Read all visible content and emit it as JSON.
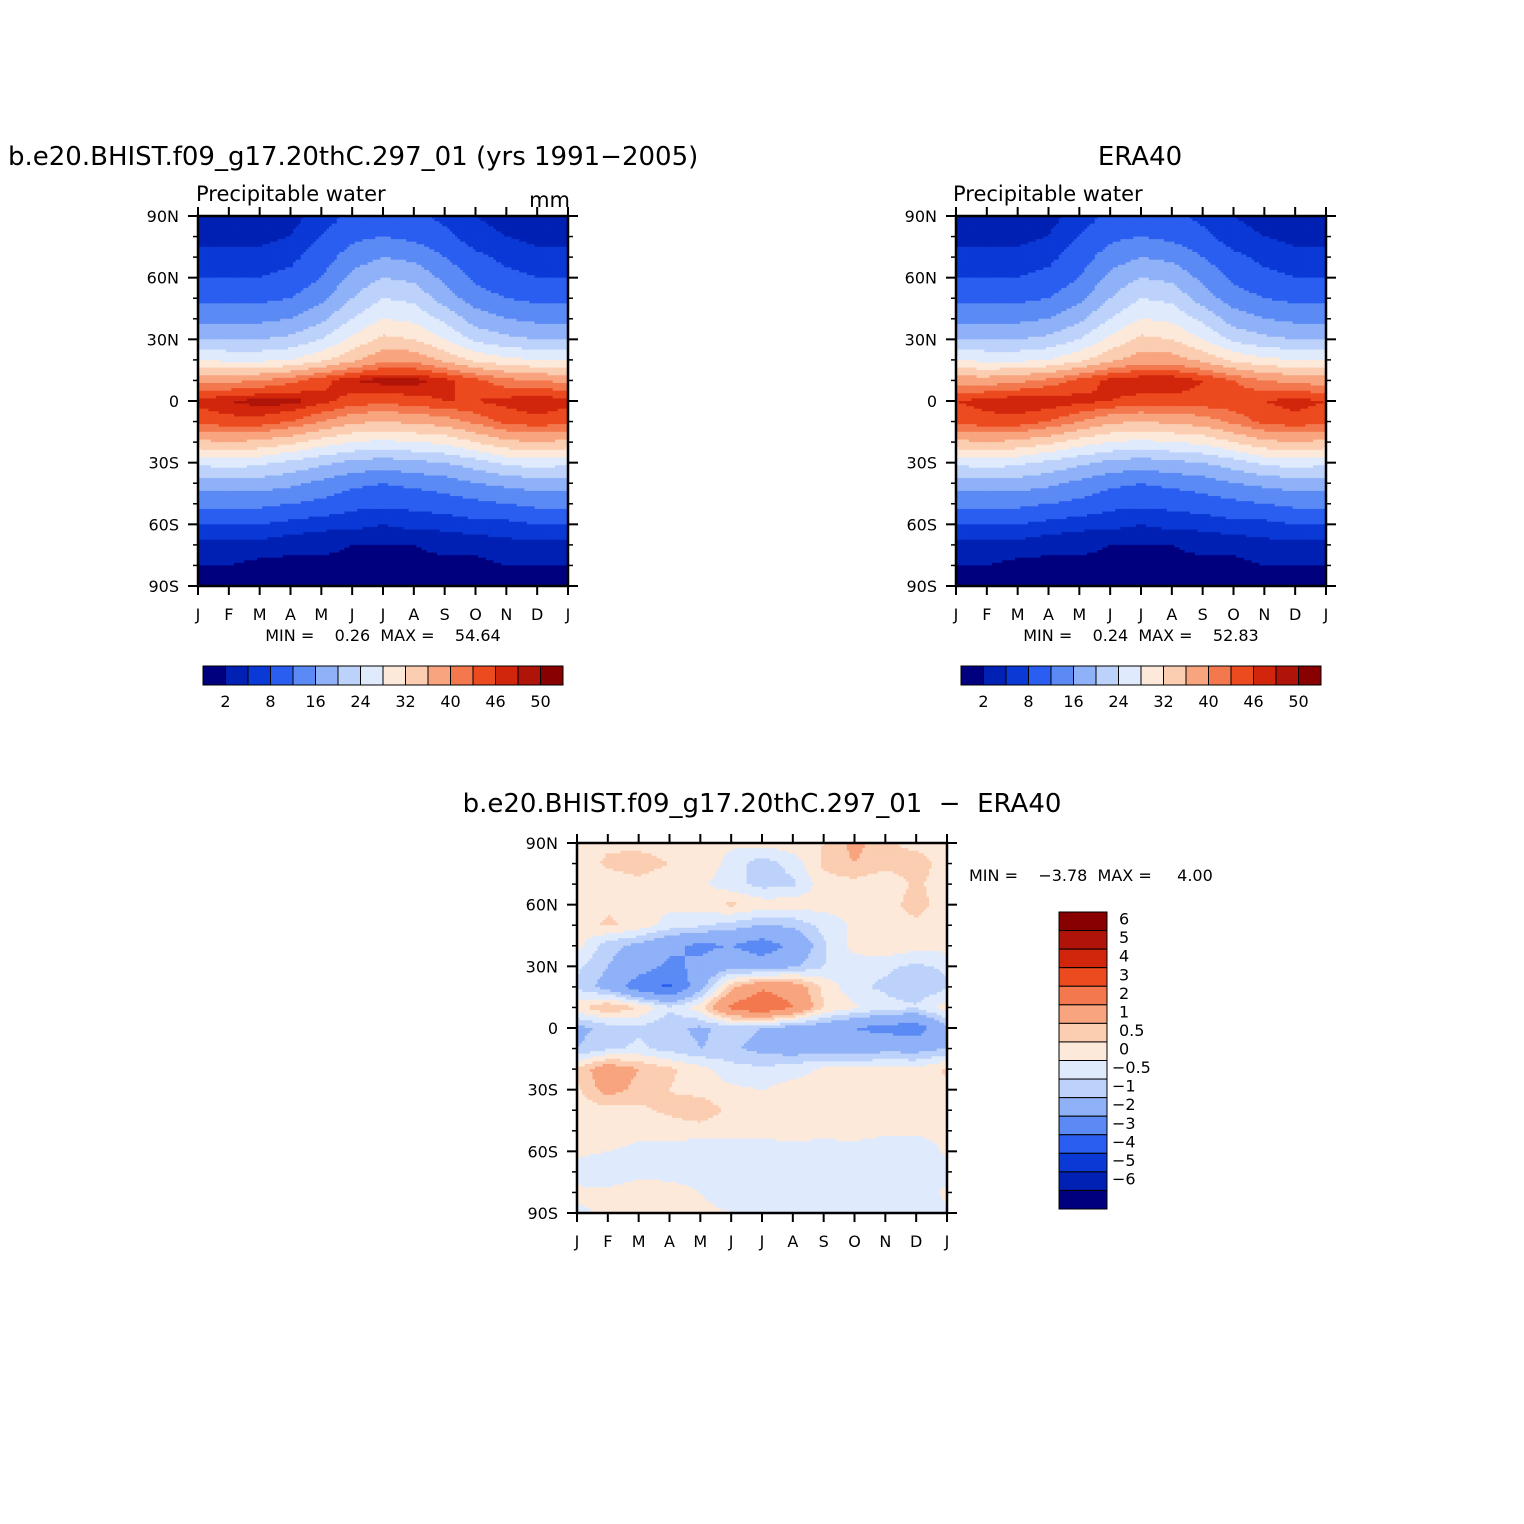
{
  "chart_data": [
    {
      "type": "heatmap",
      "title": "b.e20.BHIST.f09_g17.20thC.297_01 (yrs 1991−2005)",
      "subtitle": "Precipitable water",
      "units": "mm",
      "x_ticks": [
        "J",
        "F",
        "M",
        "A",
        "M",
        "J",
        "J",
        "A",
        "S",
        "O",
        "N",
        "D",
        "J"
      ],
      "y_ticks": [
        "90N",
        "60N",
        "30N",
        "0",
        "30S",
        "60S",
        "90S"
      ],
      "ylim": [
        -90,
        90
      ],
      "stats_text": "MIN =    0.26  MAX =    54.64",
      "min": 0.26,
      "max": 54.64,
      "colorbar_labels": [
        "2",
        "8",
        "16",
        "24",
        "32",
        "40",
        "46",
        "50"
      ],
      "colorbar_colors": [
        "#00007f",
        "#0021b4",
        "#0b39d6",
        "#2a5ef0",
        "#5b8af5",
        "#8fb1f8",
        "#bdd2fb",
        "#dfeafd",
        "#fde9da",
        "#fbcdb1",
        "#f8a47e",
        "#f4784e",
        "#ec4a1f",
        "#d2260c",
        "#b01408",
        "#880000"
      ],
      "lat_grid": [
        90,
        80,
        70,
        60,
        50,
        40,
        30,
        20,
        10,
        0,
        -10,
        -20,
        -30,
        -40,
        -50,
        -60,
        -70,
        -80,
        -90
      ],
      "values": [
        [
          3,
          3,
          3,
          4,
          6,
          9,
          10,
          9,
          7,
          5,
          4,
          3,
          3
        ],
        [
          4,
          4,
          4,
          5,
          8,
          11,
          12,
          11,
          9,
          6,
          5,
          4,
          4
        ],
        [
          6,
          6,
          6,
          7,
          10,
          14,
          16,
          15,
          12,
          9,
          7,
          6,
          6
        ],
        [
          8,
          8,
          8,
          9,
          12,
          17,
          20,
          19,
          15,
          11,
          9,
          8,
          8
        ],
        [
          11,
          11,
          11,
          12,
          15,
          20,
          24,
          23,
          18,
          14,
          12,
          11,
          11
        ],
        [
          15,
          15,
          15,
          16,
          19,
          24,
          28,
          27,
          23,
          18,
          16,
          15,
          15
        ],
        [
          20,
          20,
          20,
          21,
          24,
          29,
          33,
          32,
          28,
          23,
          21,
          20,
          20
        ],
        [
          28,
          27,
          27,
          28,
          31,
          35,
          39,
          39,
          35,
          31,
          29,
          28,
          28
        ],
        [
          39,
          39,
          40,
          42,
          45,
          48,
          49,
          49,
          47,
          44,
          41,
          40,
          39
        ],
        [
          47,
          48,
          49,
          49,
          47,
          45,
          44,
          45,
          46,
          46,
          47,
          48,
          47
        ],
        [
          44,
          45,
          45,
          43,
          40,
          37,
          36,
          37,
          38,
          41,
          44,
          45,
          44
        ],
        [
          35,
          36,
          35,
          33,
          30,
          28,
          27,
          28,
          29,
          32,
          35,
          36,
          35
        ],
        [
          25,
          26,
          25,
          23,
          21,
          19,
          18,
          19,
          20,
          22,
          25,
          26,
          25
        ],
        [
          18,
          18,
          18,
          17,
          15,
          13,
          12,
          13,
          14,
          16,
          17,
          18,
          18
        ],
        [
          13,
          13,
          13,
          12,
          11,
          9,
          9,
          9,
          10,
          11,
          12,
          13,
          13
        ],
        [
          8,
          8,
          8,
          7,
          6,
          6,
          5,
          6,
          6,
          7,
          7,
          8,
          8
        ],
        [
          4,
          4,
          4,
          3,
          3,
          2,
          2,
          2,
          3,
          3,
          4,
          4,
          4
        ],
        [
          2,
          2,
          1,
          1,
          1,
          1,
          1,
          1,
          1,
          1,
          2,
          2,
          2
        ],
        [
          1,
          1,
          1,
          1,
          1,
          1,
          1,
          1,
          1,
          1,
          1,
          1,
          1
        ]
      ]
    },
    {
      "type": "heatmap",
      "title": "ERA40",
      "subtitle": "Precipitable water",
      "x_ticks": [
        "J",
        "F",
        "M",
        "A",
        "M",
        "J",
        "J",
        "A",
        "S",
        "O",
        "N",
        "D",
        "J"
      ],
      "y_ticks": [
        "90N",
        "60N",
        "30N",
        "0",
        "30S",
        "60S",
        "90S"
      ],
      "ylim": [
        -90,
        90
      ],
      "stats_text": "MIN =    0.24  MAX =    52.83",
      "min": 0.24,
      "max": 52.83,
      "colorbar_labels": [
        "2",
        "8",
        "16",
        "24",
        "32",
        "40",
        "46",
        "50"
      ],
      "colorbar_colors": [
        "#00007f",
        "#0021b4",
        "#0b39d6",
        "#2a5ef0",
        "#5b8af5",
        "#8fb1f8",
        "#bdd2fb",
        "#dfeafd",
        "#fde9da",
        "#fbcdb1",
        "#f8a47e",
        "#f4784e",
        "#ec4a1f",
        "#d2260c",
        "#b01408",
        "#880000"
      ],
      "lat_grid": [
        90,
        80,
        70,
        60,
        50,
        40,
        30,
        20,
        10,
        0,
        -10,
        -20,
        -30,
        -40,
        -50,
        -60,
        -70,
        -80,
        -90
      ],
      "values": [
        [
          2,
          3,
          3,
          4,
          6,
          9,
          10,
          9,
          7,
          5,
          4,
          3,
          2
        ],
        [
          4,
          4,
          4,
          5,
          8,
          11,
          12,
          11,
          9,
          6,
          5,
          4,
          4
        ],
        [
          6,
          6,
          6,
          7,
          10,
          14,
          16,
          15,
          12,
          9,
          7,
          6,
          6
        ],
        [
          8,
          8,
          8,
          9,
          12,
          17,
          20,
          19,
          15,
          11,
          9,
          8,
          8
        ],
        [
          11,
          11,
          11,
          12,
          15,
          20,
          24,
          23,
          18,
          14,
          12,
          11,
          11
        ],
        [
          15,
          15,
          15,
          16,
          19,
          24,
          28,
          27,
          23,
          18,
          16,
          15,
          15
        ],
        [
          20,
          20,
          20,
          21,
          24,
          29,
          33,
          32,
          28,
          23,
          21,
          20,
          20
        ],
        [
          28,
          27,
          27,
          28,
          31,
          35,
          38,
          38,
          35,
          31,
          29,
          28,
          28
        ],
        [
          38,
          38,
          39,
          41,
          44,
          47,
          48,
          48,
          46,
          43,
          40,
          39,
          38
        ],
        [
          46,
          47,
          48,
          48,
          47,
          46,
          45,
          45,
          45,
          45,
          46,
          47,
          46
        ],
        [
          44,
          45,
          45,
          43,
          40,
          37,
          36,
          37,
          38,
          41,
          44,
          45,
          44
        ],
        [
          35,
          36,
          35,
          33,
          30,
          28,
          27,
          28,
          29,
          32,
          35,
          36,
          35
        ],
        [
          25,
          26,
          25,
          23,
          21,
          19,
          18,
          19,
          20,
          22,
          25,
          26,
          25
        ],
        [
          18,
          18,
          18,
          17,
          15,
          13,
          12,
          13,
          14,
          16,
          17,
          18,
          18
        ],
        [
          13,
          13,
          13,
          12,
          11,
          9,
          9,
          9,
          10,
          11,
          12,
          13,
          13
        ],
        [
          8,
          8,
          8,
          7,
          6,
          6,
          5,
          6,
          6,
          7,
          7,
          8,
          8
        ],
        [
          4,
          4,
          4,
          3,
          3,
          2,
          2,
          2,
          3,
          3,
          4,
          4,
          4
        ],
        [
          2,
          2,
          1,
          1,
          1,
          1,
          1,
          1,
          1,
          1,
          2,
          2,
          2
        ],
        [
          1,
          1,
          1,
          1,
          1,
          1,
          1,
          1,
          1,
          1,
          1,
          1,
          1
        ]
      ]
    },
    {
      "type": "heatmap",
      "title": "b.e20.BHIST.f09_g17.20thC.297_01  −  ERA40",
      "x_ticks": [
        "J",
        "F",
        "M",
        "A",
        "M",
        "J",
        "J",
        "A",
        "S",
        "O",
        "N",
        "D",
        "J"
      ],
      "y_ticks": [
        "90N",
        "60N",
        "30N",
        "0",
        "30S",
        "60S",
        "90S"
      ],
      "ylim": [
        -90,
        90
      ],
      "stats_text": "MIN =    −3.78  MAX =     4.00",
      "min": -3.78,
      "max": 4.0,
      "colorbar_labels": [
        "6",
        "5",
        "4",
        "3",
        "2",
        "1",
        "0.5",
        "0",
        "−0.5",
        "−1",
        "−2",
        "−3",
        "−4",
        "−5",
        "−6"
      ],
      "colorbar_colors": [
        "#880000",
        "#b01408",
        "#d2260c",
        "#ec4a1f",
        "#f4784e",
        "#f8a47e",
        "#fbcdb1",
        "#fde9da",
        "#dfeafd",
        "#bdd2fb",
        "#8fb1f8",
        "#5b8af5",
        "#2a5ef0",
        "#0b39d6",
        "#0021b4",
        "#00007f"
      ],
      "lat_grid": [
        90,
        80,
        70,
        60,
        50,
        40,
        30,
        20,
        10,
        0,
        -10,
        -20,
        -30,
        -40,
        -50,
        -60,
        -70,
        -80,
        -90
      ],
      "values": [
        [
          0.3,
          0.4,
          0.3,
          0.2,
          0.3,
          0.1,
          0.2,
          0.3,
          0.5,
          1.2,
          0.6,
          0.3,
          0.3
        ],
        [
          0.2,
          0.6,
          0.8,
          0.5,
          0.4,
          -0.2,
          -0.8,
          -0.3,
          0.6,
          1.0,
          0.7,
          0.8,
          0.2
        ],
        [
          0.2,
          0.2,
          0.3,
          0.1,
          0.1,
          -0.3,
          -0.7,
          -0.6,
          0.3,
          0.3,
          0.1,
          0.6,
          0.2
        ],
        [
          0.1,
          0.4,
          0.2,
          0.1,
          0.2,
          0.6,
          0.3,
          0.3,
          0.2,
          0.1,
          0.2,
          0.8,
          0.1
        ],
        [
          0.2,
          0.6,
          0.3,
          -0.2,
          -0.4,
          -0.7,
          -1.0,
          -0.9,
          -0.3,
          0.1,
          0.2,
          0.3,
          0.2
        ],
        [
          0.2,
          -0.8,
          -1.2,
          -1.8,
          -2.2,
          -2.0,
          -2.5,
          -1.8,
          -0.6,
          0.2,
          0.4,
          0.2,
          0.2
        ],
        [
          -0.4,
          -1.0,
          -1.5,
          -2.2,
          -1.8,
          -1.2,
          -1.5,
          -1.1,
          -0.5,
          -0.3,
          -0.4,
          -0.6,
          -0.4
        ],
        [
          -0.6,
          -1.3,
          -2.6,
          -3.2,
          -1.3,
          0.8,
          1.8,
          1.5,
          0.4,
          -0.4,
          -0.6,
          -1.0,
          -0.6
        ],
        [
          0.3,
          1.0,
          0.5,
          -0.4,
          0.3,
          2.2,
          3.0,
          2.0,
          0.5,
          0.1,
          -0.3,
          -0.4,
          0.3
        ],
        [
          -1.2,
          -0.8,
          -0.6,
          -0.9,
          -1.1,
          -0.8,
          -1.0,
          -1.3,
          -1.5,
          -2.0,
          -2.3,
          -2.5,
          -1.2
        ],
        [
          -1.0,
          -0.6,
          -0.4,
          -0.7,
          -1.0,
          -0.9,
          -1.2,
          -1.4,
          -1.3,
          -1.5,
          -1.2,
          -1.3,
          -1.0
        ],
        [
          0.6,
          1.5,
          1.0,
          0.6,
          0.2,
          -0.3,
          -0.4,
          -0.2,
          0.1,
          0.2,
          0.1,
          0.1,
          0.6
        ],
        [
          0.4,
          1.3,
          0.8,
          0.5,
          0.3,
          0.1,
          0.0,
          0.2,
          0.1,
          0.1,
          0.2,
          0.1,
          0.4
        ],
        [
          0.2,
          0.3,
          0.4,
          0.6,
          0.9,
          0.3,
          0.2,
          0.2,
          0.3,
          0.3,
          0.2,
          0.1,
          0.2
        ],
        [
          0.2,
          0.2,
          0.1,
          0.2,
          0.2,
          0.2,
          0.2,
          0.2,
          0.2,
          0.2,
          0.1,
          0.1,
          0.2
        ],
        [
          0.1,
          0.0,
          -0.1,
          -0.2,
          -0.3,
          -0.3,
          -0.3,
          -0.2,
          -0.3,
          -0.2,
          -0.3,
          -0.4,
          0.1
        ],
        [
          -0.2,
          -0.3,
          -0.1,
          -0.1,
          -0.1,
          -0.2,
          -0.2,
          -0.1,
          -0.1,
          -0.2,
          -0.2,
          -0.3,
          -0.2
        ],
        [
          0.1,
          0.1,
          0.2,
          0.1,
          0.0,
          -0.2,
          -0.2,
          -0.1,
          0.0,
          -0.2,
          -0.2,
          -0.3,
          0.1
        ],
        [
          -0.1,
          0.1,
          0.1,
          0.1,
          0.1,
          0.0,
          0.0,
          0.0,
          0.0,
          -0.1,
          -0.1,
          -0.1,
          -0.1
        ]
      ]
    }
  ]
}
